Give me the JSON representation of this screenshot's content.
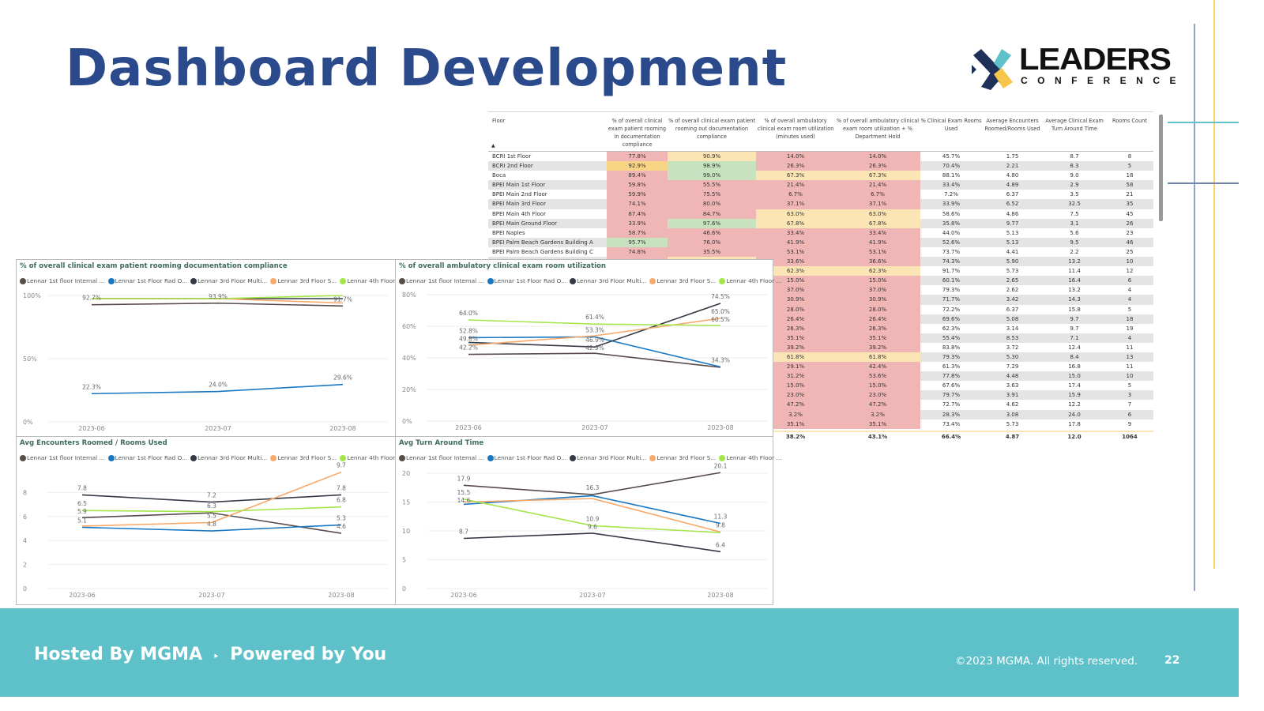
{
  "slide": {
    "title": "Dashboard Development",
    "logo": {
      "word": "LEADERS",
      "sub": "CONFERENCE"
    },
    "footer": {
      "hosted": "Hosted By MGMA",
      "separator": "‣",
      "powered": "Powered by You",
      "copyright": "©2023 MGMA. All rights reserved.",
      "page_number": "22"
    },
    "colors": {
      "title": "#2b4a8b",
      "footer": "#5ec1c9",
      "accent_yellow": "#f6d56b",
      "accent_teal": "#5ec1c9"
    }
  },
  "table": {
    "headers": [
      "Floor",
      "% of overall clinical exam patient rooming in documentation compliance",
      "% of overall clinical exam patient rooming out documentation compliance",
      "% of overall ambulatory clinical exam room utilization (minutes used)",
      "% of overall ambulatory clinical exam room utilization + % Department Hold",
      "% Clinical Exam Rooms Used",
      "Average Encounters Roomed/Rooms Used",
      "Average Clinical Exam Turn Around Time",
      "Rooms Count"
    ],
    "sort_indicator": "▲",
    "color_legend": {
      "r": "#f0b6b6",
      "y": "#fbe5b4",
      "g": "#c7e2bf",
      "o": "#f8d585"
    },
    "rows": [
      {
        "cells": [
          "BCRI 1st Floor",
          "77.8%",
          "90.9%",
          "14.0%",
          "14.0%",
          "45.7%",
          "1.75",
          "8.7",
          "8"
        ],
        "status": [
          "r",
          "y",
          "r",
          "r"
        ]
      },
      {
        "cells": [
          "BCRI 2nd Floor",
          "92.9%",
          "98.9%",
          "26.3%",
          "26.3%",
          "70.4%",
          "2.21",
          "8.3",
          "5"
        ],
        "status": [
          "o",
          "g",
          "r",
          "r"
        ]
      },
      {
        "cells": [
          "Boca",
          "89.4%",
          "99.0%",
          "67.3%",
          "67.3%",
          "88.1%",
          "4.80",
          "9.0",
          "18"
        ],
        "status": [
          "r",
          "g",
          "y",
          "y"
        ]
      },
      {
        "cells": [
          "BPEI Main 1st Floor",
          "59.8%",
          "55.5%",
          "21.4%",
          "21.4%",
          "33.4%",
          "4.89",
          "2.9",
          "58"
        ],
        "status": [
          "r",
          "r",
          "r",
          "r"
        ]
      },
      {
        "cells": [
          "BPEI Main 2nd Floor",
          "59.9%",
          "75.5%",
          "6.7%",
          "6.7%",
          "7.2%",
          "6.37",
          "3.5",
          "21"
        ],
        "status": [
          "r",
          "r",
          "r",
          "r"
        ]
      },
      {
        "cells": [
          "BPEI Main 3rd Floor",
          "74.1%",
          "80.0%",
          "37.1%",
          "37.1%",
          "33.9%",
          "6.52",
          "32.5",
          "35"
        ],
        "status": [
          "r",
          "r",
          "r",
          "r"
        ]
      },
      {
        "cells": [
          "BPEI Main 4th Floor",
          "87.4%",
          "84.7%",
          "63.0%",
          "63.0%",
          "58.6%",
          "4.86",
          "7.5",
          "45"
        ],
        "status": [
          "r",
          "r",
          "y",
          "y"
        ]
      },
      {
        "cells": [
          "BPEI Main Ground Floor",
          "33.9%",
          "97.6%",
          "67.8%",
          "67.8%",
          "35.8%",
          "9.77",
          "3.1",
          "26"
        ],
        "status": [
          "r",
          "g",
          "y",
          "y"
        ]
      },
      {
        "cells": [
          "BPEI Naples",
          "58.7%",
          "46.6%",
          "33.4%",
          "33.4%",
          "44.0%",
          "5.13",
          "5.6",
          "23"
        ],
        "status": [
          "r",
          "r",
          "r",
          "r"
        ]
      },
      {
        "cells": [
          "BPEI Palm Beach Gardens Building A",
          "95.7%",
          "76.0%",
          "41.9%",
          "41.9%",
          "52.6%",
          "5.13",
          "9.5",
          "46"
        ],
        "status": [
          "g",
          "r",
          "r",
          "r"
        ]
      },
      {
        "cells": [
          "BPEI Palm Beach Gardens Building C",
          "74.8%",
          "35.5%",
          "53.1%",
          "53.1%",
          "73.7%",
          "4.41",
          "2.2",
          "25"
        ],
        "status": [
          "r",
          "r",
          "r",
          "r"
        ]
      },
      {
        "cells": [
          "",
          "",
          "",
          "33.6%",
          "36.6%",
          "74.3%",
          "5.90",
          "13.2",
          "10"
        ],
        "status": [
          "r",
          "y",
          "r",
          "r"
        ]
      },
      {
        "cells": [
          "",
          "",
          "",
          "62.3%",
          "62.3%",
          "91.7%",
          "5.73",
          "11.4",
          "12"
        ],
        "status": [
          "",
          "",
          "y",
          "y"
        ]
      },
      {
        "cells": [
          "",
          "",
          "",
          "15.0%",
          "15.0%",
          "60.1%",
          "2.65",
          "16.4",
          "6"
        ],
        "status": [
          "",
          "",
          "r",
          "r"
        ]
      },
      {
        "cells": [
          "",
          "",
          "",
          "37.0%",
          "37.0%",
          "79.3%",
          "2.62",
          "13.2",
          "4"
        ],
        "status": [
          "",
          "",
          "r",
          "r"
        ]
      },
      {
        "cells": [
          "",
          "",
          "",
          "30.9%",
          "30.9%",
          "71.7%",
          "3.42",
          "14.3",
          "4"
        ],
        "status": [
          "",
          "",
          "r",
          "r"
        ]
      },
      {
        "cells": [
          "",
          "",
          "",
          "28.0%",
          "28.0%",
          "72.2%",
          "6.37",
          "15.8",
          "5"
        ],
        "status": [
          "",
          "",
          "r",
          "r"
        ]
      },
      {
        "cells": [
          "",
          "",
          "",
          "26.4%",
          "26.4%",
          "69.6%",
          "5.08",
          "9.7",
          "18"
        ],
        "status": [
          "",
          "",
          "r",
          "r"
        ]
      },
      {
        "cells": [
          "",
          "",
          "",
          "26.3%",
          "26.3%",
          "62.3%",
          "3.14",
          "9.7",
          "19"
        ],
        "status": [
          "",
          "",
          "r",
          "r"
        ]
      },
      {
        "cells": [
          "",
          "",
          "",
          "35.1%",
          "35.1%",
          "55.4%",
          "8.53",
          "7.1",
          "4"
        ],
        "status": [
          "",
          "",
          "r",
          "r"
        ]
      },
      {
        "cells": [
          "",
          "",
          "",
          "39.2%",
          "39.2%",
          "83.8%",
          "3.72",
          "12.4",
          "11"
        ],
        "status": [
          "",
          "",
          "r",
          "r"
        ]
      },
      {
        "cells": [
          "",
          "",
          "",
          "61.8%",
          "61.8%",
          "79.3%",
          "5.30",
          "8.4",
          "13"
        ],
        "status": [
          "",
          "",
          "y",
          "y"
        ]
      },
      {
        "cells": [
          "",
          "",
          "",
          "29.1%",
          "42.4%",
          "61.3%",
          "7.29",
          "16.8",
          "11"
        ],
        "status": [
          "",
          "",
          "r",
          "r"
        ]
      },
      {
        "cells": [
          "",
          "",
          "",
          "31.2%",
          "53.6%",
          "77.8%",
          "4.48",
          "15.0",
          "10"
        ],
        "status": [
          "",
          "",
          "r",
          "r"
        ]
      },
      {
        "cells": [
          "",
          "",
          "",
          "15.0%",
          "15.0%",
          "67.6%",
          "3.63",
          "17.4",
          "5"
        ],
        "status": [
          "",
          "",
          "r",
          "r"
        ]
      },
      {
        "cells": [
          "",
          "",
          "",
          "23.0%",
          "23.0%",
          "79.7%",
          "3.91",
          "15.9",
          "3"
        ],
        "status": [
          "",
          "",
          "r",
          "r"
        ]
      },
      {
        "cells": [
          "",
          "",
          "",
          "47.2%",
          "47.2%",
          "72.7%",
          "4.62",
          "12.2",
          "7"
        ],
        "status": [
          "",
          "",
          "r",
          "r"
        ]
      },
      {
        "cells": [
          "",
          "",
          "",
          "3.2%",
          "3.2%",
          "28.3%",
          "3.08",
          "24.0",
          "6"
        ],
        "status": [
          "",
          "",
          "r",
          "r"
        ]
      },
      {
        "cells": [
          "",
          "",
          "",
          "35.1%",
          "35.1%",
          "73.4%",
          "5.73",
          "17.8",
          "9"
        ],
        "status": [
          "",
          "",
          "r",
          "r"
        ]
      }
    ],
    "total": [
      "",
      "",
      "",
      "38.2%",
      "43.1%",
      "66.4%",
      "4.87",
      "12.0",
      "1064"
    ]
  },
  "chart_data": [
    {
      "type": "line",
      "title": "% of overall clinical exam patient rooming documentation compliance",
      "categories": [
        "2023-06",
        "2023-07",
        "2023-08"
      ],
      "yticks": [
        "0%",
        "50%",
        "100%"
      ],
      "ylim": [
        0,
        100
      ],
      "ytick_values": [
        0,
        50,
        100
      ],
      "grid": true,
      "legend": "top",
      "series": [
        {
          "name": "Lennar 1st floor Internal ...",
          "color": "#5a4b4b",
          "values": [
            92.7,
            93.9,
            91.7
          ],
          "labels": [
            "92.7%",
            "93.9%",
            "91.7%"
          ]
        },
        {
          "name": "Lennar 1st Floor Rad O...",
          "color": "#1a78c2",
          "values": [
            22.3,
            24.0,
            29.6
          ],
          "labels": [
            "22.3%",
            "24.0%",
            "29.6%"
          ]
        },
        {
          "name": "Lennar 3rd Floor Multi...",
          "color": "#343a46",
          "values": [
            97.5,
            97.5,
            97.5
          ],
          "labels": [
            null,
            null,
            null
          ]
        },
        {
          "name": "Lennar 3rd Floor S...",
          "color": "#f8a96a",
          "values": [
            97.5,
            97.5,
            94.0
          ],
          "labels": [
            null,
            null,
            null
          ]
        },
        {
          "name": "Lennar 4th Floor ...",
          "color": "#a4e64b",
          "values": [
            97.5,
            97.5,
            100
          ],
          "labels": [
            null,
            null,
            null
          ]
        }
      ]
    },
    {
      "type": "line",
      "title": "% of overall ambulatory clinical exam room utilization",
      "categories": [
        "2023-06",
        "2023-07",
        "2023-08"
      ],
      "yticks": [
        "0%",
        "20%",
        "40%",
        "60%",
        "80%"
      ],
      "ylim": [
        0,
        80
      ],
      "ytick_values": [
        0,
        20,
        40,
        60,
        80
      ],
      "grid": true,
      "legend": "top",
      "series": [
        {
          "name": "Lennar 1st floor Internal ...",
          "color": "#5a4b4b",
          "values": [
            42.2,
            42.9,
            34.0
          ],
          "labels": [
            "42.2%",
            "42.9%",
            null
          ]
        },
        {
          "name": "Lennar 1st Floor Rad O...",
          "color": "#1a78c2",
          "values": [
            52.8,
            53.3,
            34.3
          ],
          "labels": [
            "52.8%",
            "53.3%",
            "34.3%"
          ]
        },
        {
          "name": "Lennar 3rd Floor Multi...",
          "color": "#343a46",
          "values": [
            49.8,
            46.9,
            74.5
          ],
          "labels": [
            "49.8%",
            "46.9%",
            "74.5%"
          ]
        },
        {
          "name": "Lennar 3rd Floor S...",
          "color": "#f8a96a",
          "values": [
            48.0,
            54.0,
            65.0
          ],
          "labels": [
            null,
            null,
            "65.0%"
          ]
        },
        {
          "name": "Lennar 4th Floor ...",
          "color": "#a4e64b",
          "values": [
            64.0,
            61.4,
            60.5
          ],
          "labels": [
            "64.0%",
            "61.4%",
            "60.5%"
          ]
        }
      ]
    },
    {
      "type": "line",
      "title": "Avg Encounters Roomed / Rooms Used",
      "categories": [
        "2023-06",
        "2023-07",
        "2023-08"
      ],
      "yticks": [
        "0",
        "2",
        "4",
        "6",
        "8"
      ],
      "ylim": [
        0,
        10
      ],
      "ytick_values": [
        0,
        2,
        4,
        6,
        8
      ],
      "grid": true,
      "legend": "top",
      "series": [
        {
          "name": "Lennar 1st floor Internal ...",
          "color": "#5a4b4b",
          "values": [
            5.9,
            6.3,
            4.6
          ],
          "labels": [
            "5.9",
            "6.3",
            "4.6"
          ]
        },
        {
          "name": "Lennar 1st Floor Rad O...",
          "color": "#1a78c2",
          "values": [
            5.1,
            4.8,
            5.3
          ],
          "labels": [
            "5.1",
            "4.8",
            "5.3"
          ]
        },
        {
          "name": "Lennar 3rd Floor Multi...",
          "color": "#343a46",
          "values": [
            7.8,
            7.2,
            7.8
          ],
          "labels": [
            "7.8",
            "7.2",
            "7.8"
          ]
        },
        {
          "name": "Lennar 3rd Floor S...",
          "color": "#f8a96a",
          "values": [
            5.2,
            5.5,
            9.7
          ],
          "labels": [
            null,
            "5.5",
            "9.7"
          ]
        },
        {
          "name": "Lennar 4th Floor ...",
          "color": "#a4e64b",
          "values": [
            6.5,
            6.4,
            6.8
          ],
          "labels": [
            "6.5",
            null,
            "6.8"
          ]
        }
      ]
    },
    {
      "type": "line",
      "title": "Avg Turn Around Time",
      "categories": [
        "2023-06",
        "2023-07",
        "2023-08"
      ],
      "yticks": [
        "0",
        "5",
        "10",
        "15",
        "20"
      ],
      "ylim": [
        0,
        20
      ],
      "ytick_values": [
        0,
        5,
        10,
        15,
        20
      ],
      "grid": true,
      "legend": "top",
      "series": [
        {
          "name": "Lennar 1st floor Internal ...",
          "color": "#5a4b4b",
          "values": [
            17.9,
            16.3,
            20.1
          ],
          "labels": [
            "17.9",
            "16.3",
            "20.1"
          ]
        },
        {
          "name": "Lennar 1st Floor Rad O...",
          "color": "#1a78c2",
          "values": [
            14.6,
            16.1,
            11.3
          ],
          "labels": [
            "14.6",
            null,
            "11.3"
          ]
        },
        {
          "name": "Lennar 3rd Floor Multi...",
          "color": "#343a46",
          "values": [
            8.7,
            9.6,
            6.4
          ],
          "labels": [
            "8.7",
            "9.6",
            "6.4"
          ]
        },
        {
          "name": "Lennar 3rd Floor S...",
          "color": "#f8a96a",
          "values": [
            15.0,
            15.6,
            9.8
          ],
          "labels": [
            null,
            null,
            "9.8"
          ]
        },
        {
          "name": "Lennar 4th Floor ...",
          "color": "#a4e64b",
          "values": [
            15.5,
            10.9,
            9.7
          ],
          "labels": [
            "15.5",
            "10.9",
            null
          ]
        }
      ]
    }
  ]
}
